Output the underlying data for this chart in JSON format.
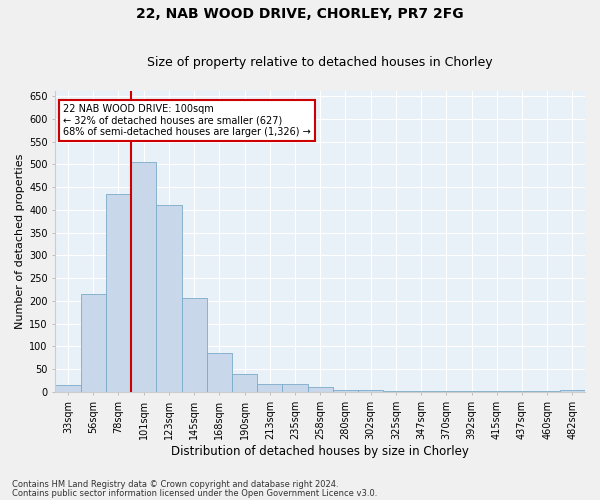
{
  "title1": "22, NAB WOOD DRIVE, CHORLEY, PR7 2FG",
  "title2": "Size of property relative to detached houses in Chorley",
  "xlabel": "Distribution of detached houses by size in Chorley",
  "ylabel": "Number of detached properties",
  "categories": [
    "33sqm",
    "56sqm",
    "78sqm",
    "101sqm",
    "123sqm",
    "145sqm",
    "168sqm",
    "190sqm",
    "213sqm",
    "235sqm",
    "258sqm",
    "280sqm",
    "302sqm",
    "325sqm",
    "347sqm",
    "370sqm",
    "392sqm",
    "415sqm",
    "437sqm",
    "460sqm",
    "482sqm"
  ],
  "values": [
    15,
    215,
    435,
    505,
    410,
    207,
    85,
    40,
    18,
    17,
    10,
    5,
    4,
    3,
    3,
    3,
    3,
    3,
    3,
    3,
    4
  ],
  "bar_color": "#c8d8ea",
  "bar_edge_color": "#7aaac8",
  "annotation_text": "22 NAB WOOD DRIVE: 100sqm\n← 32% of detached houses are smaller (627)\n68% of semi-detached houses are larger (1,326) →",
  "annotation_box_color": "#ffffff",
  "annotation_box_edge": "#cc0000",
  "vline_color": "#cc0000",
  "footnote1": "Contains HM Land Registry data © Crown copyright and database right 2024.",
  "footnote2": "Contains public sector information licensed under the Open Government Licence v3.0.",
  "ylim": [
    0,
    660
  ],
  "yticks": [
    0,
    50,
    100,
    150,
    200,
    250,
    300,
    350,
    400,
    450,
    500,
    550,
    600,
    650
  ],
  "bg_color": "#e8f0f8",
  "grid_color": "#ffffff",
  "title1_fontsize": 10,
  "title2_fontsize": 9,
  "tick_fontsize": 7,
  "xlabel_fontsize": 8.5,
  "ylabel_fontsize": 8
}
